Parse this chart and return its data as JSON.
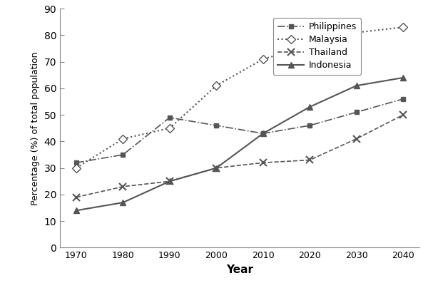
{
  "years": [
    1970,
    1980,
    1990,
    2000,
    2010,
    2020,
    2030,
    2040
  ],
  "philippines": [
    32,
    35,
    49,
    46,
    43,
    46,
    51,
    56
  ],
  "malaysia": [
    30,
    41,
    45,
    61,
    71,
    76,
    81,
    83
  ],
  "thailand": [
    19,
    23,
    25,
    30,
    32,
    33,
    41,
    50
  ],
  "indonesia": [
    14,
    17,
    25,
    30,
    43,
    53,
    61,
    64
  ],
  "xlabel": "Year",
  "ylabel": "Percentage (%) of total population",
  "ylim": [
    0,
    90
  ],
  "yticks": [
    0,
    10,
    20,
    30,
    40,
    50,
    60,
    70,
    80,
    90
  ],
  "line_color": "#555555",
  "legend_labels": [
    "Philippines",
    "Malaysia",
    "Thailand",
    "Indonesia"
  ],
  "background_color": "#ffffff"
}
